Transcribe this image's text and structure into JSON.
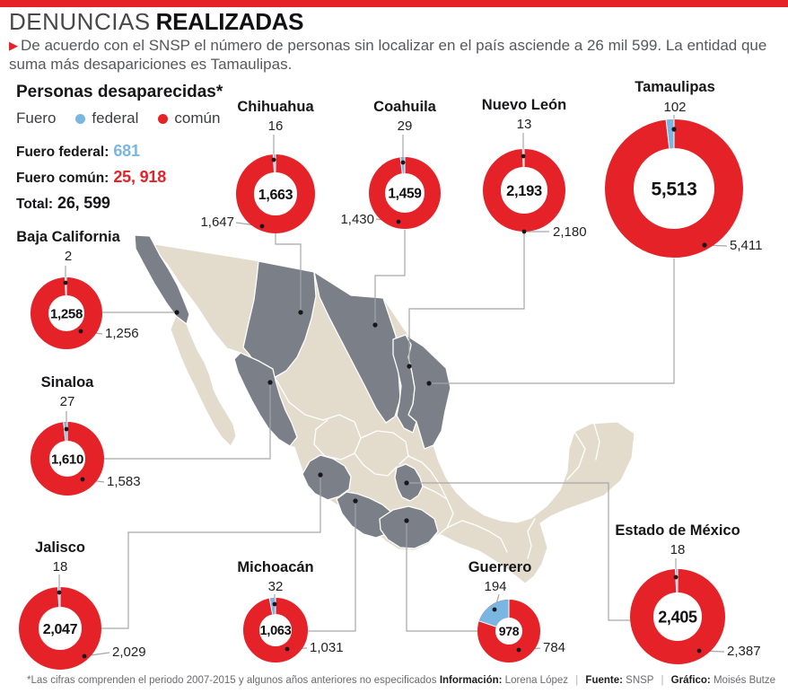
{
  "colors": {
    "red": "#e42227",
    "blue": "#79b6e1",
    "map_base": "#e3dccd",
    "map_highlight": "#7a7f88",
    "connector": "#a4a6a9",
    "text_dark": "#1d1d1f",
    "text_gray": "#57585b"
  },
  "header": {
    "title_light": "DENUNCIAS",
    "title_bold": "REALIZADAS",
    "bullet": "▶",
    "subtitle": "De acuerdo con el SNSP el número de personas sin localizar en el país asciende a 26 mil 599. La entidad que suma más desapariciones es Tamaulipas."
  },
  "legend": {
    "title": "Personas desaparecidas*",
    "fuero_label": "Fuero",
    "federal_label": "federal",
    "comun_label": "común",
    "stats": [
      {
        "label": "Fuero federal:",
        "value": "681"
      },
      {
        "label": "Fuero común:",
        "value": "25, 918"
      },
      {
        "label": "Total:",
        "value": "26, 599"
      }
    ]
  },
  "chart_data": {
    "type": "pie",
    "subtype": "donut-map",
    "title": "Personas desaparecidas* (denuncias realizadas por entidad)",
    "legend_entries": [
      "federal",
      "común"
    ],
    "national": {
      "federal": 681,
      "comun": 25918,
      "total": 26599
    },
    "states": [
      {
        "name": "Chihuahua",
        "federal": 16,
        "comun": 1647,
        "total": 1663,
        "federal_label": "16",
        "comun_label": "1,647",
        "total_label": "1,663"
      },
      {
        "name": "Coahuila",
        "federal": 29,
        "comun": 1430,
        "total": 1459,
        "federal_label": "29",
        "comun_label": "1,430",
        "total_label": "1,459"
      },
      {
        "name": "Nuevo León",
        "federal": 13,
        "comun": 2180,
        "total": 2193,
        "federal_label": "13",
        "comun_label": "2,180",
        "total_label": "2,193"
      },
      {
        "name": "Tamaulipas",
        "federal": 102,
        "comun": 5411,
        "total": 5513,
        "federal_label": "102",
        "comun_label": "5,411",
        "total_label": "5,513"
      },
      {
        "name": "Baja California",
        "federal": 2,
        "comun": 1256,
        "total": 1258,
        "federal_label": "2",
        "comun_label": "1,256",
        "total_label": "1,258"
      },
      {
        "name": "Sinaloa",
        "federal": 27,
        "comun": 1583,
        "total": 1610,
        "federal_label": "27",
        "comun_label": "1,583",
        "total_label": "1,610"
      },
      {
        "name": "Jalisco",
        "federal": 18,
        "comun": 2029,
        "total": 2047,
        "federal_label": "18",
        "comun_label": "2,029",
        "total_label": "2,047"
      },
      {
        "name": "Michoacán",
        "federal": 32,
        "comun": 1031,
        "total": 1063,
        "federal_label": "32",
        "comun_label": "1,031",
        "total_label": "1,063"
      },
      {
        "name": "Guerrero",
        "federal": 194,
        "comun": 784,
        "total": 978,
        "federal_label": "194",
        "comun_label": "784",
        "total_label": "978"
      },
      {
        "name": "Estado de México",
        "federal": 18,
        "comun": 2387,
        "total": 2405,
        "federal_label": "18",
        "comun_label": "2,387",
        "total_label": "2,405"
      }
    ]
  },
  "footer": {
    "note": "*Las cifras comprenden el periodo 2007-2015 y algunos años anteriores no especificados",
    "separator": "|",
    "credits": [
      {
        "label": "Información:",
        "value": "Lorena López"
      },
      {
        "label": "Fuente:",
        "value": "SNSP"
      },
      {
        "label": "Gráfico:",
        "value": "Moisés Butze"
      }
    ]
  }
}
